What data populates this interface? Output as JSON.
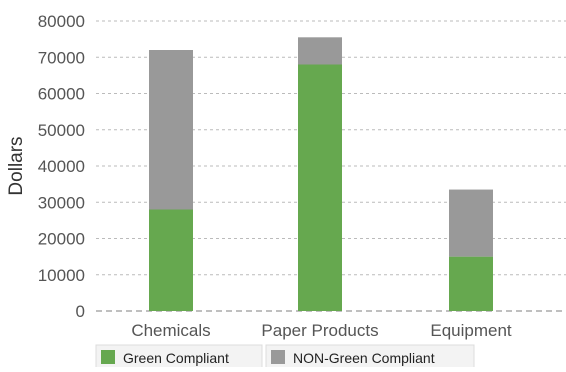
{
  "chart_data": {
    "type": "bar",
    "stacked": true,
    "categories": [
      "Chemicals",
      "Paper Products",
      "Equipment"
    ],
    "series": [
      {
        "name": "Green Compliant",
        "values": [
          28000,
          68000,
          15000
        ],
        "color": "#66a84f"
      },
      {
        "name": "NON-Green Compliant",
        "values": [
          44000,
          7500,
          18500
        ],
        "color": "#999999"
      }
    ],
    "xlabel": "",
    "ylabel": "Dollars",
    "ylim": [
      0,
      80000
    ],
    "yticks": [
      "0",
      "10000",
      "20000",
      "30000",
      "40000",
      "50000",
      "60000",
      "70000",
      "80000"
    ],
    "grid": true,
    "legend_position": "bottom-left"
  }
}
